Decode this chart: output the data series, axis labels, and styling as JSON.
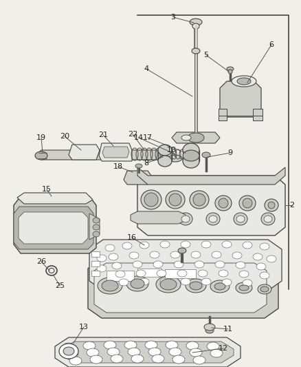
{
  "bg_color": "#f0efea",
  "line_color": "#444444",
  "dark_gray": "#555555",
  "mid_gray": "#888888",
  "light_gray": "#bbbbbb",
  "fill_light": "#e8e8e4",
  "fill_mid": "#d0d0ca",
  "fill_dark": "#b8b8b2",
  "border_lw": 1.2,
  "label_fs": 8,
  "label_color": "#222222"
}
